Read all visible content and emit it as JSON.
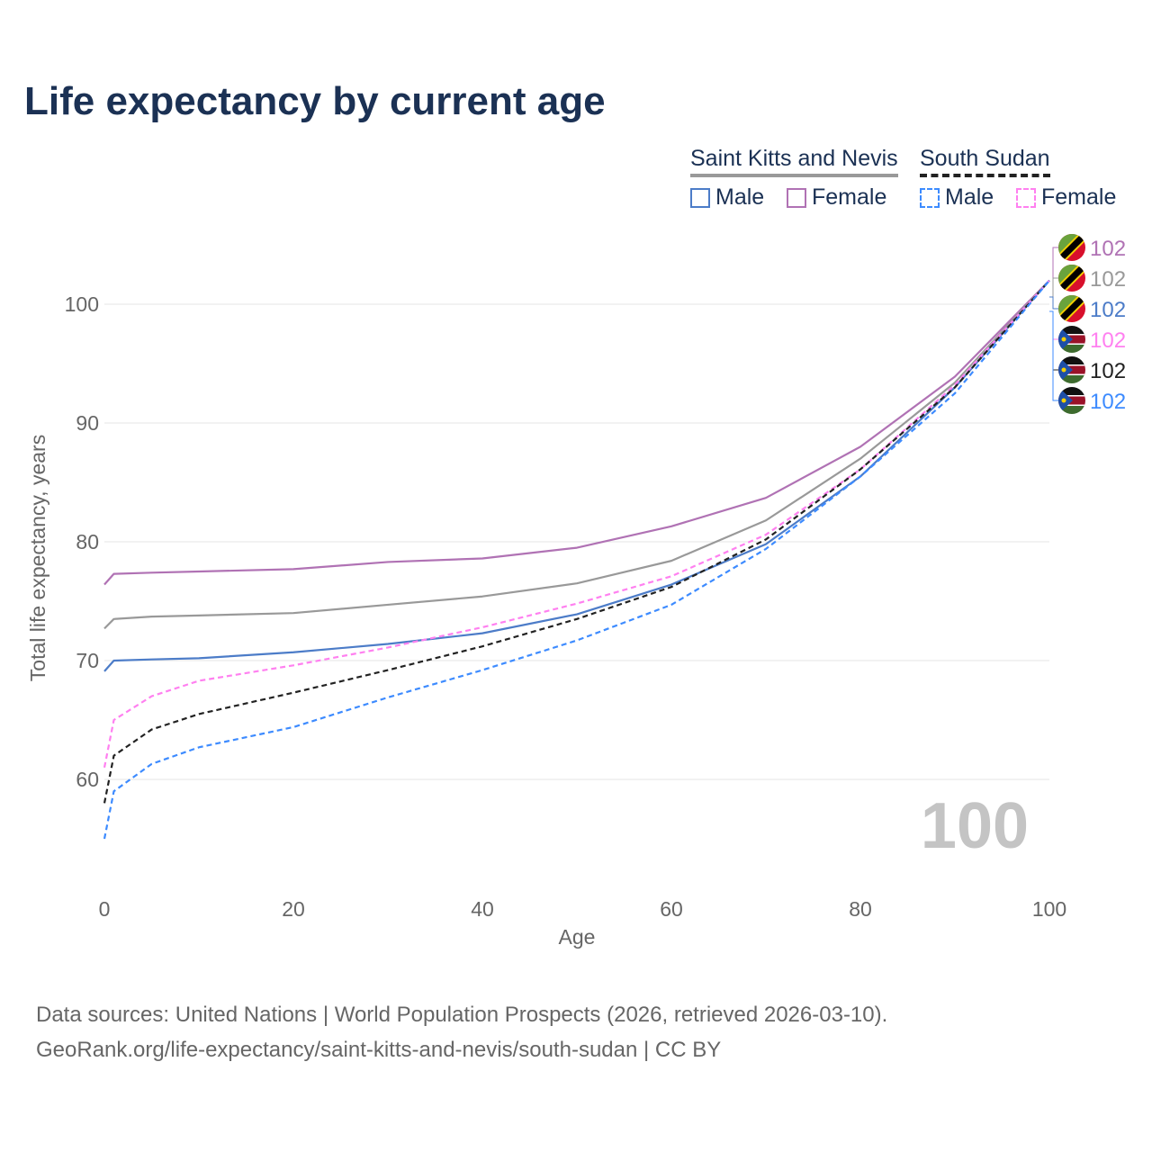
{
  "title": "Life expectancy by current age",
  "legend": {
    "groups": [
      {
        "country": "Saint Kitts and Nevis",
        "line_color": "#999999",
        "dash": false,
        "items": [
          {
            "label": "Male",
            "color": "#4c7cc8"
          },
          {
            "label": "Female",
            "color": "#b072b4"
          }
        ]
      },
      {
        "country": "South Sudan",
        "line_color": "#222222",
        "dash": true,
        "items": [
          {
            "label": "Male",
            "color": "#3d8bff"
          },
          {
            "label": "Female",
            "color": "#ff80f0"
          }
        ]
      }
    ]
  },
  "watermark": "100",
  "source_lines": [
    "Data sources: United Nations | World Population Prospects (2026, retrieved 2026-03-10).",
    "GeoRank.org/life-expectancy/saint-kitts-and-nevis/south-sudan | CC BY"
  ],
  "chart_data": {
    "type": "line",
    "title": "Life expectancy by current age",
    "xlabel": "Age",
    "ylabel": "Total life expectancy, years",
    "xlim": [
      0,
      100
    ],
    "ylim": [
      52,
      106
    ],
    "xticks": [
      0,
      20,
      40,
      60,
      80,
      100
    ],
    "yticks": [
      60,
      70,
      80,
      90,
      100
    ],
    "grid": true,
    "x": [
      0,
      1,
      5,
      10,
      20,
      30,
      40,
      50,
      60,
      70,
      80,
      90,
      100
    ],
    "series": [
      {
        "name": "Saint Kitts and Nevis Female",
        "color": "#b072b4",
        "dash": false,
        "flag": "kn",
        "end_label": "102",
        "values": [
          76.4,
          77.3,
          77.4,
          77.5,
          77.7,
          78.3,
          78.6,
          79.5,
          81.3,
          83.7,
          88.0,
          93.9,
          102
        ]
      },
      {
        "name": "Saint Kitts and Nevis Total",
        "color": "#999999",
        "dash": false,
        "flag": "kn",
        "end_label": "102",
        "values": [
          72.7,
          73.5,
          73.7,
          73.8,
          74.0,
          74.7,
          75.4,
          76.5,
          78.4,
          81.8,
          87.0,
          93.4,
          102
        ]
      },
      {
        "name": "Saint Kitts and Nevis Male",
        "color": "#4c7cc8",
        "dash": false,
        "flag": "kn",
        "end_label": "102",
        "values": [
          69.1,
          70.0,
          70.1,
          70.2,
          70.7,
          71.4,
          72.3,
          73.9,
          76.4,
          79.8,
          85.5,
          93.0,
          102
        ]
      },
      {
        "name": "South Sudan Female",
        "color": "#ff80f0",
        "dash": true,
        "flag": "ss",
        "end_label": "102",
        "values": [
          61.0,
          65.0,
          67.0,
          68.3,
          69.6,
          71.1,
          72.8,
          74.8,
          77.1,
          80.6,
          86.1,
          93.2,
          102
        ]
      },
      {
        "name": "South Sudan Total",
        "color": "#222222",
        "dash": true,
        "flag": "ss",
        "end_label": "102",
        "values": [
          58.0,
          62.0,
          64.2,
          65.5,
          67.3,
          69.2,
          71.2,
          73.5,
          76.2,
          80.2,
          86.1,
          93.0,
          102
        ]
      },
      {
        "name": "South Sudan Male",
        "color": "#3d8bff",
        "dash": true,
        "flag": "ss",
        "end_label": "102",
        "values": [
          55.0,
          59.0,
          61.3,
          62.7,
          64.4,
          66.9,
          69.2,
          71.7,
          74.7,
          79.4,
          85.5,
          92.5,
          102
        ]
      }
    ]
  }
}
